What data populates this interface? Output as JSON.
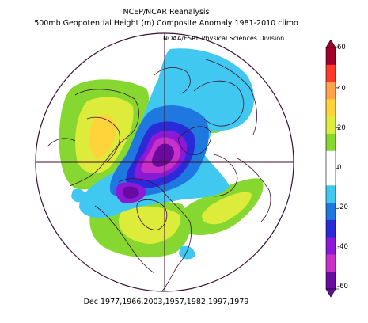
{
  "header": {
    "title_line1": "NCEP/NCAR Reanalysis",
    "title_line2": "500mb Geopotential Height (m) Composite Anomaly 1981-2010 climo",
    "credit": "NOAA/ESRL Physical Sciences Division"
  },
  "footer": {
    "dates": "Dec 1977,1966,2003,1957,1982,1997,1979"
  },
  "colorbar": {
    "ticks": [
      "60",
      "40",
      "20",
      "0",
      "-20",
      "-40",
      "-60"
    ],
    "colors": [
      "#a0002a",
      "#ff3a2a",
      "#ffa24a",
      "#ffd43a",
      "#ddec3a",
      "#86d830",
      "#ffffff",
      "#ffffff",
      "#40c8f0",
      "#1e78e0",
      "#2a2ad8",
      "#8c18d8",
      "#c830c8",
      "#6a0aa0"
    ]
  },
  "map": {
    "projection": "polar stereographic, North Pole centered"
  }
}
